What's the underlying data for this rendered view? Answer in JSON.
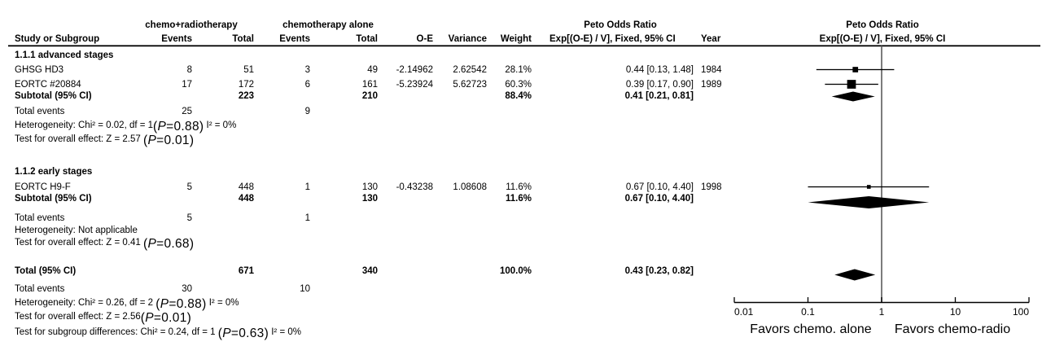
{
  "header": {
    "group1": "chemo+radiotherapy",
    "group2": "chemotherapy alone",
    "effect_title": "Peto Odds Ratio",
    "effect_subtitle": "Exp[(O-E) / V], Fixed, 95% CI",
    "plot_title": "Peto Odds Ratio",
    "plot_subtitle": "Exp[(O-E) / V], Fixed, 95% CI",
    "columns": {
      "study": "Study or Subgroup",
      "events1": "Events",
      "total1": "Total",
      "events2": "Events",
      "total2": "Total",
      "oe": "O-E",
      "variance": "Variance",
      "weight": "Weight",
      "year": "Year"
    }
  },
  "rows": [
    {
      "kind": "section",
      "label": "1.1.1 advanced stages"
    },
    {
      "kind": "study",
      "label": "GHSG HD3",
      "cells": {
        "e1": "8",
        "t1": "51",
        "e2": "3",
        "t2": "49",
        "oe": "-2.14962",
        "variance": "2.62542",
        "weight": "28.1%",
        "effect": "0.44 [0.13, 1.48]"
      },
      "year": "1984"
    },
    {
      "kind": "study",
      "label": "EORTC #20884",
      "cells": {
        "e1": "17",
        "t1": "172",
        "e2": "6",
        "t2": "161",
        "oe": "-5.23924",
        "variance": "5.62723",
        "weight": "60.3%",
        "effect": "0.39 [0.17, 0.90]"
      },
      "year": "1989"
    },
    {
      "kind": "subtotal",
      "label": "Subtotal (95% CI)",
      "cells": {
        "t1": "223",
        "t2": "210",
        "weight": "88.4%",
        "effect": "0.41 [0.21, 0.81]"
      }
    },
    {
      "kind": "events",
      "label": "Total events",
      "cells": {
        "e1": "25",
        "e2": "9"
      }
    },
    {
      "kind": "stat",
      "pre": "Heterogeneity: Chi² = 0.02, df = 1",
      "p": "0.88",
      "post": " I² = 0%"
    },
    {
      "kind": "stat",
      "pre": "Test for overall effect: Z = 2.57 ",
      "p": "0.01",
      "post": ""
    },
    {
      "kind": "section",
      "label": "1.1.2 early stages"
    },
    {
      "kind": "study",
      "label": "EORTC H9-F",
      "cells": {
        "e1": "5",
        "t1": "448",
        "e2": "1",
        "t2": "130",
        "oe": "-0.43238",
        "variance": "1.08608",
        "weight": "11.6%",
        "effect": "0.67 [0.10, 4.40]"
      },
      "year": "1998"
    },
    {
      "kind": "subtotal",
      "label": "Subtotal (95% CI)",
      "cells": {
        "t1": "448",
        "t2": "130",
        "weight": "11.6%",
        "effect": "0.67 [0.10, 4.40]"
      }
    },
    {
      "kind": "events",
      "label": "Total events",
      "cells": {
        "e1": "5",
        "e2": "1"
      }
    },
    {
      "kind": "stat",
      "pre": "Heterogeneity: Not applicable",
      "p": null,
      "post": ""
    },
    {
      "kind": "stat",
      "pre": "Test for overall effect: Z = 0.41 ",
      "p": "0.68",
      "post": ""
    },
    {
      "kind": "total",
      "label": "Total (95% CI)",
      "cells": {
        "t1": "671",
        "t2": "340",
        "weight": "100.0%",
        "effect": "0.43 [0.23, 0.82]"
      }
    },
    {
      "kind": "events",
      "label": "Total events",
      "cells": {
        "e1": "30",
        "e2": "10"
      }
    },
    {
      "kind": "stat",
      "pre": "Heterogeneity: Chi² = 0.26, df = 2 ",
      "p": "0.88",
      "post": " I² = 0%"
    },
    {
      "kind": "stat",
      "pre": "Test for overall effect: Z = 2.56",
      "p": "0.01",
      "post": ""
    },
    {
      "kind": "stat",
      "pre": "Test for subgroup differences: Chi² = 0.24, df = 1 ",
      "p": "0.63",
      "post": " I² = 0%"
    }
  ],
  "chart_data": {
    "type": "forest",
    "effect_measure": "Peto Odds Ratio",
    "method": "Exp[(O-E) / V], Fixed, 95% CI",
    "x_scale": "log10",
    "x_ticks": [
      0.01,
      0.1,
      1,
      10,
      100
    ],
    "x_tick_labels": [
      "0.01",
      "0.1",
      "1",
      "10",
      "100"
    ],
    "null_line": 1,
    "favors_left": "Favors chemo. alone",
    "favors_right": "Favors chemo-radio",
    "groups": [
      {
        "name": "1.1.1 advanced stages",
        "studies": [
          {
            "name": "GHSG HD3",
            "events_treat": 8,
            "total_treat": 51,
            "events_ctrl": 3,
            "total_ctrl": 49,
            "o_minus_e": -2.14962,
            "variance": 2.62542,
            "weight_pct": 28.1,
            "est": 0.44,
            "ci_low": 0.13,
            "ci_high": 1.48,
            "year": 1984
          },
          {
            "name": "EORTC #20884",
            "events_treat": 17,
            "total_treat": 172,
            "events_ctrl": 6,
            "total_ctrl": 161,
            "o_minus_e": -5.23924,
            "variance": 5.62723,
            "weight_pct": 60.3,
            "est": 0.39,
            "ci_low": 0.17,
            "ci_high": 0.9,
            "year": 1989
          }
        ],
        "subtotal": {
          "total_treat": 223,
          "total_ctrl": 210,
          "weight_pct": 88.4,
          "est": 0.41,
          "ci_low": 0.21,
          "ci_high": 0.81
        },
        "total_events_treat": 25,
        "total_events_ctrl": 9,
        "heterogeneity": "Chi² = 0.02, df = 1 (P=0.88), I² = 0%",
        "overall_effect": "Z = 2.57 (P=0.01)"
      },
      {
        "name": "1.1.2 early stages",
        "studies": [
          {
            "name": "EORTC H9-F",
            "events_treat": 5,
            "total_treat": 448,
            "events_ctrl": 1,
            "total_ctrl": 130,
            "o_minus_e": -0.43238,
            "variance": 1.08608,
            "weight_pct": 11.6,
            "est": 0.67,
            "ci_low": 0.1,
            "ci_high": 4.4,
            "year": 1998
          }
        ],
        "subtotal": {
          "total_treat": 448,
          "total_ctrl": 130,
          "weight_pct": 11.6,
          "est": 0.67,
          "ci_low": 0.1,
          "ci_high": 4.4
        },
        "total_events_treat": 5,
        "total_events_ctrl": 1,
        "heterogeneity": "Not applicable",
        "overall_effect": "Z = 0.41 (P=0.68)"
      }
    ],
    "total": {
      "total_treat": 671,
      "total_ctrl": 340,
      "weight_pct": 100.0,
      "est": 0.43,
      "ci_low": 0.23,
      "ci_high": 0.82,
      "total_events_treat": 30,
      "total_events_ctrl": 10,
      "heterogeneity": "Chi² = 0.26, df = 2 (P=0.88), I² = 0%",
      "overall_effect": "Z = 2.56 (P=0.01)",
      "subgroup_differences": "Chi² = 0.24, df = 1 (P=0.63), I² = 0%"
    }
  }
}
